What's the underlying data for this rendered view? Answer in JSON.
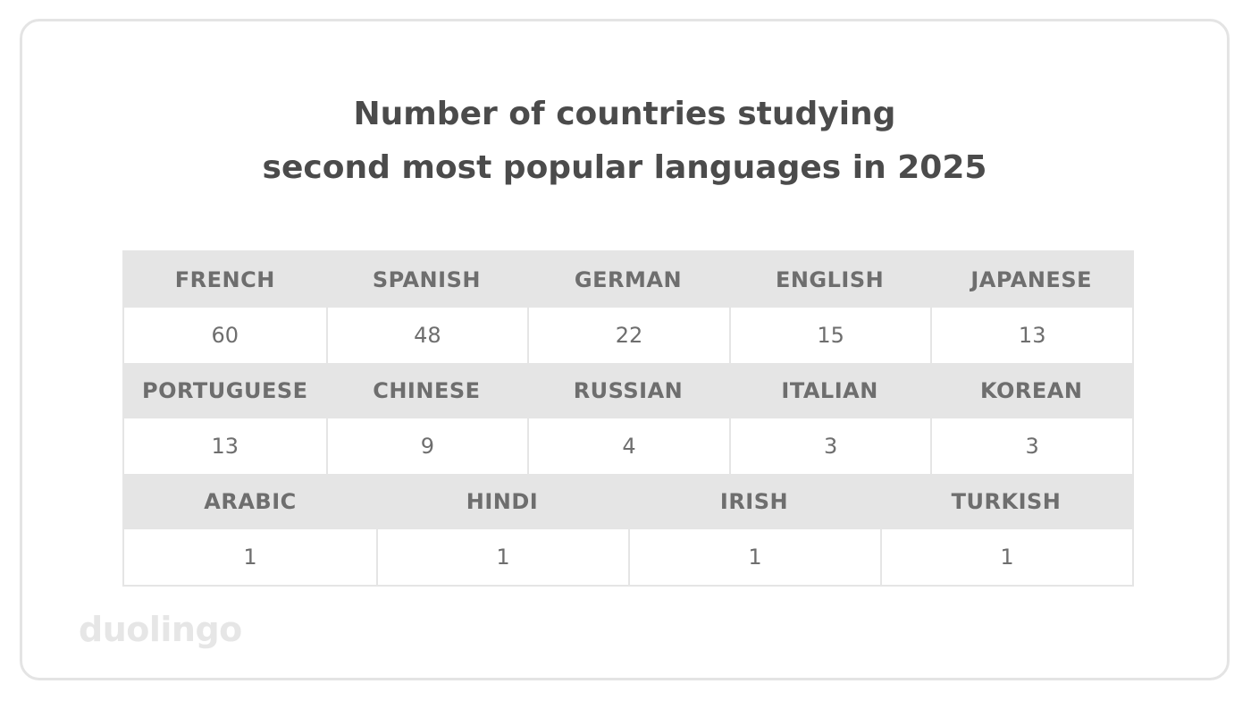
{
  "chart_data": {
    "type": "table",
    "title_lines": [
      "Number of countries studying",
      "second most popular languages in 2025"
    ],
    "rows": [
      {
        "languages": [
          "FRENCH",
          "SPANISH",
          "GERMAN",
          "ENGLISH",
          "JAPANESE"
        ],
        "values": [
          "60",
          "48",
          "22",
          "15",
          "13"
        ]
      },
      {
        "languages": [
          "PORTUGUESE",
          "CHINESE",
          "RUSSIAN",
          "ITALIAN",
          "KOREAN"
        ],
        "values": [
          "13",
          "9",
          "4",
          "3",
          "3"
        ]
      },
      {
        "languages": [
          "ARABIC",
          "HINDI",
          "IRISH",
          "TURKISH"
        ],
        "values": [
          "1",
          "1",
          "1",
          "1"
        ]
      }
    ]
  },
  "brand": {
    "logo_text": "duolingo"
  },
  "colors": {
    "title": "#4b4b4b",
    "cell_text": "#6e6e6e",
    "header_bg": "#e5e5e5",
    "logo": "#e6e6e6"
  }
}
